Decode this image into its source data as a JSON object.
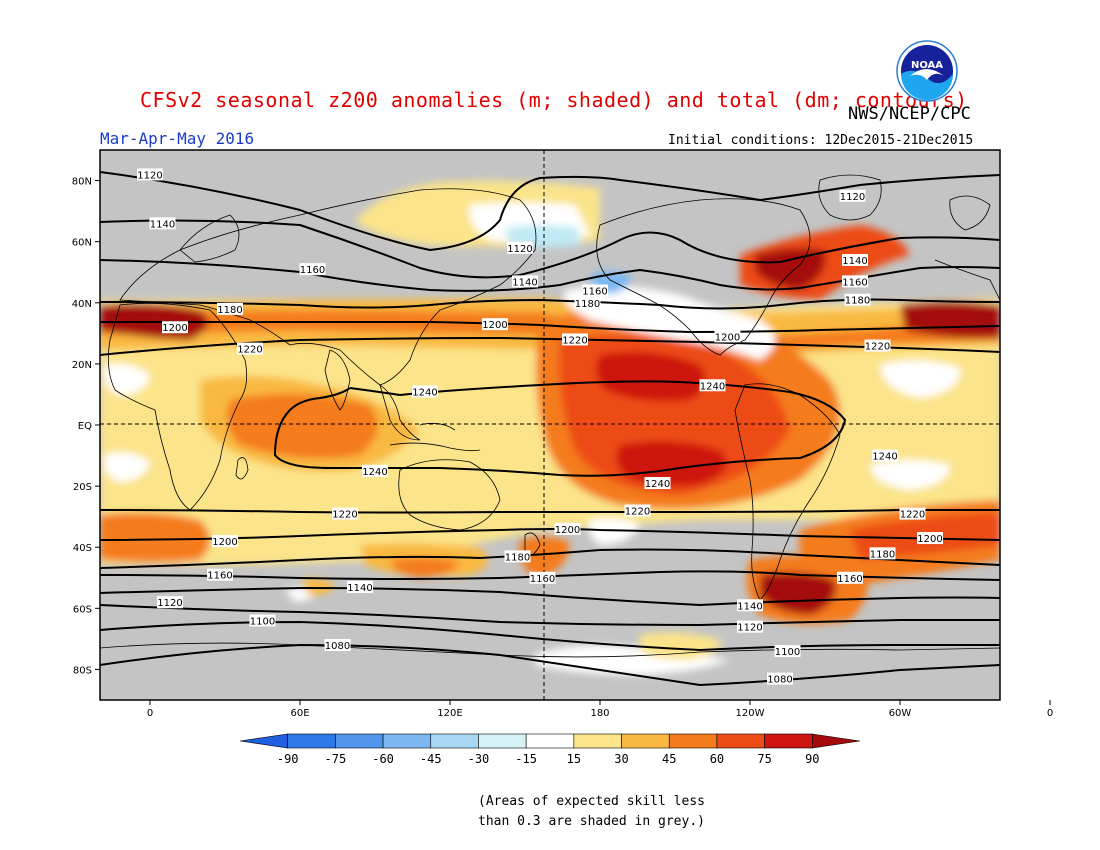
{
  "title": "CFSv2 seasonal z200 anomalies (m; shaded) and total (dm; contours)",
  "organization": "NWS/NCEP/CPC",
  "logo_text": "NOAA",
  "season": "Mar-Apr-May 2016",
  "initial_conditions": "Initial conditions: 12Dec2015-21Dec2015",
  "lat_labels": [
    "80N",
    "60N",
    "40N",
    "20N",
    "EQ",
    "20S",
    "40S",
    "60S",
    "80S"
  ],
  "lon_labels": [
    "0",
    "60E",
    "120E",
    "180",
    "120W",
    "60W",
    "0"
  ],
  "colorbar": {
    "ticks": [
      "-90",
      "-75",
      "-60",
      "-45",
      "-30",
      "-15",
      "15",
      "30",
      "45",
      "60",
      "75",
      "90"
    ],
    "colors": [
      "#1f5fe0",
      "#2f78e8",
      "#4f96ec",
      "#7db7f2",
      "#a9d8f5",
      "#d6f4f8",
      "#ffffff",
      "#fbe48a",
      "#f9b941",
      "#f47c1e",
      "#ed4c14",
      "#cd140e",
      "#a50a0a"
    ]
  },
  "footnote": [
    "(Areas of expected skill less",
    "than 0.3 are shaded in grey.)"
  ],
  "contour_labels": [
    {
      "text": "1120",
      "lon": 0,
      "lat": 82
    },
    {
      "text": "1140",
      "lon": 5,
      "lat": 66
    },
    {
      "text": "1160",
      "lon": 65,
      "lat": 51
    },
    {
      "text": "1180",
      "lon": 32,
      "lat": 38
    },
    {
      "text": "1200",
      "lon": 10,
      "lat": 32
    },
    {
      "text": "1220",
      "lon": 40,
      "lat": 25
    },
    {
      "text": "1120",
      "lon": 148,
      "lat": 58
    },
    {
      "text": "1140",
      "lon": 150,
      "lat": 47
    },
    {
      "text": "1160",
      "lon": 178,
      "lat": 44
    },
    {
      "text": "1180",
      "lon": 175,
      "lat": 40
    },
    {
      "text": "1200",
      "lon": 138,
      "lat": 33
    },
    {
      "text": "1220",
      "lon": 170,
      "lat": 28
    },
    {
      "text": "1240",
      "lon": 110,
      "lat": 11
    },
    {
      "text": "1240",
      "lon": -135,
      "lat": 13
    },
    {
      "text": "1200",
      "lon": -129,
      "lat": 29
    },
    {
      "text": "1120",
      "lon": -79,
      "lat": 75
    },
    {
      "text": "1140",
      "lon": -78,
      "lat": 54
    },
    {
      "text": "1160",
      "lon": -78,
      "lat": 47
    },
    {
      "text": "1180",
      "lon": -77,
      "lat": 41
    },
    {
      "text": "1220",
      "lon": -69,
      "lat": 26
    },
    {
      "text": "1240",
      "lon": 90,
      "lat": -15
    },
    {
      "text": "1240",
      "lon": -157,
      "lat": -19
    },
    {
      "text": "1240",
      "lon": -66,
      "lat": -10
    },
    {
      "text": "1220",
      "lon": 78,
      "lat": -29
    },
    {
      "text": "1220",
      "lon": -165,
      "lat": -28
    },
    {
      "text": "1220",
      "lon": -55,
      "lat": -29
    },
    {
      "text": "1200",
      "lon": 30,
      "lat": -38
    },
    {
      "text": "1200",
      "lon": 167,
      "lat": -34
    },
    {
      "text": "1200",
      "lon": -48,
      "lat": -37
    },
    {
      "text": "1180",
      "lon": 147,
      "lat": -43
    },
    {
      "text": "1180",
      "lon": -67,
      "lat": -42
    },
    {
      "text": "1160",
      "lon": 28,
      "lat": -49
    },
    {
      "text": "1160",
      "lon": 157,
      "lat": -50
    },
    {
      "text": "1160",
      "lon": -80,
      "lat": -50
    },
    {
      "text": "1140",
      "lon": 84,
      "lat": -53
    },
    {
      "text": "1140",
      "lon": -120,
      "lat": -59
    },
    {
      "text": "1120",
      "lon": 8,
      "lat": -58
    },
    {
      "text": "1120",
      "lon": -120,
      "lat": -66
    },
    {
      "text": "1100",
      "lon": 45,
      "lat": -64
    },
    {
      "text": "1100",
      "lon": -105,
      "lat": -74
    },
    {
      "text": "1080",
      "lon": 75,
      "lat": -72
    },
    {
      "text": "1080",
      "lon": -108,
      "lat": -83
    }
  ]
}
